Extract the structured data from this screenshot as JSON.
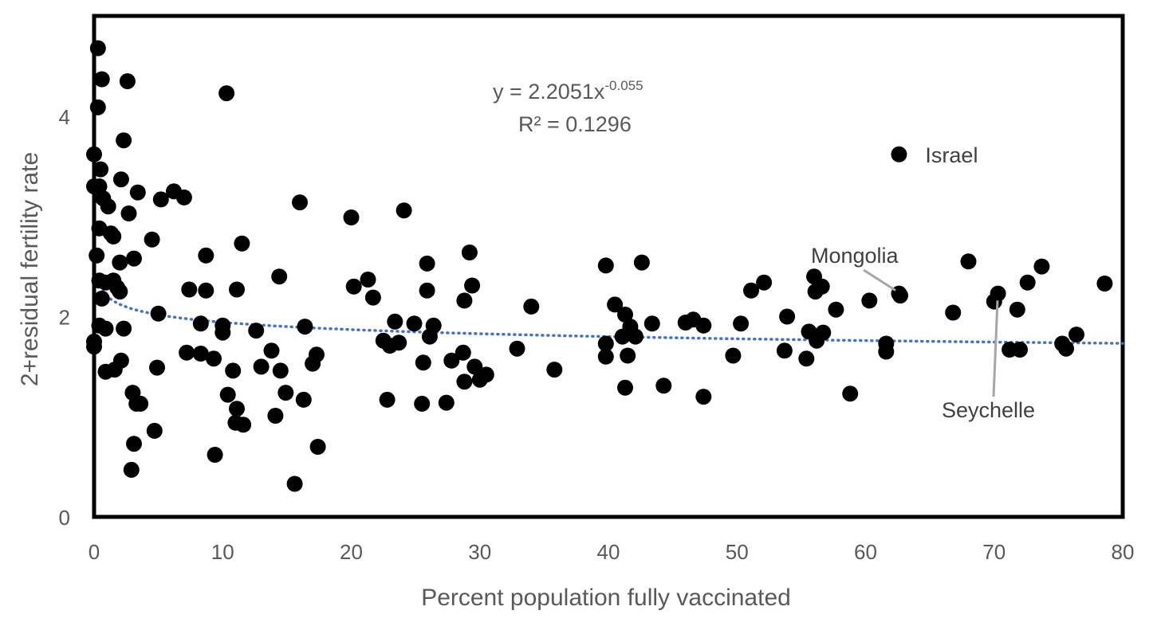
{
  "chart_data": {
    "type": "scatter",
    "title": "",
    "xlabel": "Percent population fully vaccinated",
    "ylabel": "2+residual fertility rate",
    "xlim": [
      0,
      80
    ],
    "ylim": [
      0,
      5
    ],
    "x_ticks": [
      "0",
      "10",
      "20",
      "30",
      "40",
      "50",
      "60",
      "70",
      "80"
    ],
    "y_ticks": [
      "0",
      "2",
      "4"
    ],
    "grid": false,
    "legend": "none",
    "point_color": "#000000",
    "trendline": {
      "type": "power",
      "a": 2.2051,
      "b": -0.055,
      "color": "#4472C4",
      "style": "dotted",
      "equation_main": "y = 2.2051x",
      "equation_exp": "-0.055",
      "r_squared": "R² = 0.1296"
    },
    "annotations": [
      {
        "label": "Israel",
        "x": 62.6,
        "y": 3.62
      },
      {
        "label": "Mongolia",
        "x": 62.7,
        "y": 2.23
      },
      {
        "label": "Seychelle",
        "x": 70.2,
        "y": 2.24
      }
    ],
    "points": [
      [
        0.3,
        4.68
      ],
      [
        0.6,
        4.37
      ],
      [
        0.3,
        4.09
      ],
      [
        2.6,
        4.35
      ],
      [
        10.3,
        4.23
      ],
      [
        0.0,
        3.62
      ],
      [
        2.3,
        3.76
      ],
      [
        0.5,
        3.47
      ],
      [
        0.0,
        3.3
      ],
      [
        0.4,
        3.3
      ],
      [
        2.1,
        3.37
      ],
      [
        3.4,
        3.24
      ],
      [
        6.2,
        3.25
      ],
      [
        7.0,
        3.19
      ],
      [
        5.2,
        3.17
      ],
      [
        16.0,
        3.14
      ],
      [
        0.7,
        3.18
      ],
      [
        1.1,
        3.1
      ],
      [
        2.7,
        3.03
      ],
      [
        20.0,
        2.99
      ],
      [
        24.1,
        3.06
      ],
      [
        0.4,
        2.88
      ],
      [
        1.3,
        2.83
      ],
      [
        1.5,
        2.8
      ],
      [
        4.5,
        2.77
      ],
      [
        11.5,
        2.73
      ],
      [
        0.2,
        2.61
      ],
      [
        2.0,
        2.54
      ],
      [
        3.1,
        2.58
      ],
      [
        8.7,
        2.61
      ],
      [
        29.2,
        2.64
      ],
      [
        25.9,
        2.53
      ],
      [
        39.8,
        2.51
      ],
      [
        42.6,
        2.54
      ],
      [
        0.4,
        2.36
      ],
      [
        0.9,
        2.34
      ],
      [
        1.5,
        2.36
      ],
      [
        1.8,
        2.29
      ],
      [
        2.0,
        2.25
      ],
      [
        0.6,
        2.18
      ],
      [
        7.4,
        2.27
      ],
      [
        8.7,
        2.26
      ],
      [
        11.1,
        2.27
      ],
      [
        14.4,
        2.4
      ],
      [
        20.2,
        2.3
      ],
      [
        21.3,
        2.37
      ],
      [
        21.7,
        2.19
      ],
      [
        25.9,
        2.26
      ],
      [
        29.4,
        2.31
      ],
      [
        28.8,
        2.16
      ],
      [
        34.0,
        2.1
      ],
      [
        40.5,
        2.12
      ],
      [
        41.3,
        2.02
      ],
      [
        51.1,
        2.26
      ],
      [
        52.1,
        2.34
      ],
      [
        56.0,
        2.4
      ],
      [
        56.1,
        2.25
      ],
      [
        56.6,
        2.3
      ],
      [
        57.7,
        2.07
      ],
      [
        60.3,
        2.16
      ],
      [
        62.6,
        2.23
      ],
      [
        62.7,
        2.21
      ],
      [
        66.8,
        2.04
      ],
      [
        68.0,
        2.55
      ],
      [
        70.0,
        2.15
      ],
      [
        70.3,
        2.23
      ],
      [
        71.8,
        2.07
      ],
      [
        72.6,
        2.34
      ],
      [
        73.7,
        2.5
      ],
      [
        78.6,
        2.33
      ],
      [
        0.4,
        1.91
      ],
      [
        2.3,
        1.88
      ],
      [
        0.9,
        1.88
      ],
      [
        5.0,
        2.03
      ],
      [
        8.3,
        1.93
      ],
      [
        10.0,
        1.91
      ],
      [
        10.0,
        1.84
      ],
      [
        12.6,
        1.86
      ],
      [
        16.4,
        1.9
      ],
      [
        23.4,
        1.95
      ],
      [
        24.9,
        1.93
      ],
      [
        26.4,
        1.91
      ],
      [
        26.1,
        1.8
      ],
      [
        41.7,
        1.9
      ],
      [
        43.4,
        1.93
      ],
      [
        46.0,
        1.94
      ],
      [
        46.6,
        1.97
      ],
      [
        47.4,
        1.91
      ],
      [
        50.3,
        1.93
      ],
      [
        53.9,
        2.0
      ],
      [
        55.6,
        1.85
      ],
      [
        56.2,
        1.76
      ],
      [
        56.7,
        1.84
      ],
      [
        0.0,
        1.75
      ],
      [
        0.0,
        1.7
      ],
      [
        2.1,
        1.56
      ],
      [
        7.2,
        1.64
      ],
      [
        8.3,
        1.63
      ],
      [
        9.3,
        1.58
      ],
      [
        13.8,
        1.66
      ],
      [
        17.3,
        1.62
      ],
      [
        17.0,
        1.53
      ],
      [
        22.5,
        1.76
      ],
      [
        23.0,
        1.71
      ],
      [
        23.7,
        1.74
      ],
      [
        27.8,
        1.56
      ],
      [
        28.7,
        1.64
      ],
      [
        29.6,
        1.5
      ],
      [
        32.9,
        1.68
      ],
      [
        39.8,
        1.73
      ],
      [
        39.8,
        1.6
      ],
      [
        41.1,
        1.8
      ],
      [
        41.5,
        1.61
      ],
      [
        42.1,
        1.8
      ],
      [
        49.7,
        1.61
      ],
      [
        53.7,
        1.66
      ],
      [
        55.4,
        1.58
      ],
      [
        61.6,
        1.73
      ],
      [
        61.6,
        1.65
      ],
      [
        71.2,
        1.67
      ],
      [
        72.0,
        1.67
      ],
      [
        75.3,
        1.73
      ],
      [
        75.6,
        1.68
      ],
      [
        76.4,
        1.82
      ],
      [
        0.9,
        1.45
      ],
      [
        1.6,
        1.47
      ],
      [
        3.0,
        1.24
      ],
      [
        4.9,
        1.49
      ],
      [
        10.8,
        1.46
      ],
      [
        13.0,
        1.5
      ],
      [
        14.5,
        1.46
      ],
      [
        14.9,
        1.24
      ],
      [
        25.6,
        1.54
      ],
      [
        30.0,
        1.37
      ],
      [
        30.5,
        1.42
      ],
      [
        35.8,
        1.47
      ],
      [
        28.8,
        1.35
      ],
      [
        3.3,
        1.13
      ],
      [
        3.6,
        1.13
      ],
      [
        10.4,
        1.22
      ],
      [
        11.1,
        1.08
      ],
      [
        11.0,
        0.94
      ],
      [
        11.6,
        0.92
      ],
      [
        14.1,
        1.01
      ],
      [
        16.3,
        1.17
      ],
      [
        22.8,
        1.17
      ],
      [
        25.5,
        1.13
      ],
      [
        27.4,
        1.14
      ],
      [
        41.3,
        1.29
      ],
      [
        44.3,
        1.31
      ],
      [
        47.4,
        1.2
      ],
      [
        58.8,
        1.23
      ],
      [
        3.1,
        0.73
      ],
      [
        4.7,
        0.86
      ],
      [
        2.9,
        0.47
      ],
      [
        9.4,
        0.62
      ],
      [
        15.6,
        0.33
      ],
      [
        17.4,
        0.7
      ]
    ]
  }
}
